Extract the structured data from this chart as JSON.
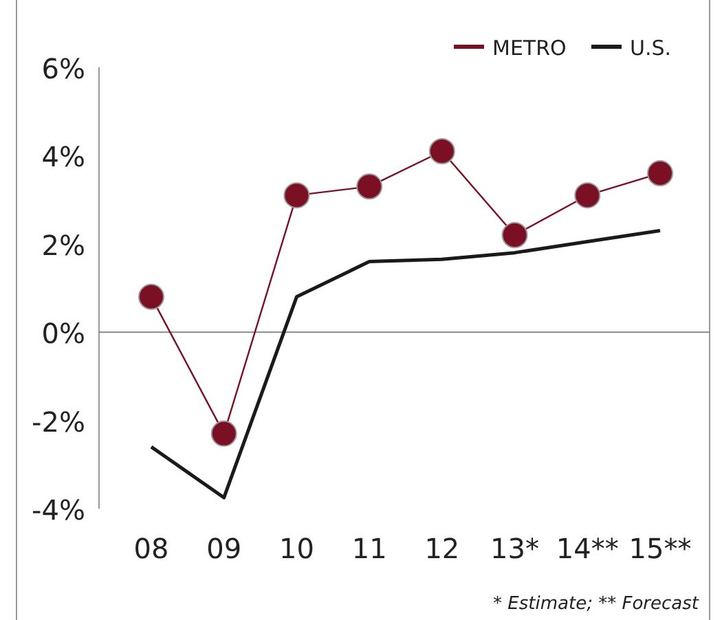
{
  "chart_data": {
    "type": "line",
    "categories": [
      "08",
      "09",
      "10",
      "11",
      "12",
      "13*",
      "14**",
      "15**"
    ],
    "series": [
      {
        "name": "METRO",
        "color": "#7b0f24",
        "marker": "circle",
        "values": [
          0.8,
          -2.3,
          3.1,
          3.3,
          4.1,
          2.2,
          3.1,
          3.6
        ]
      },
      {
        "name": "U.S.",
        "color": "#1a1a1a",
        "marker": "none",
        "values": [
          -2.6,
          -3.75,
          0.8,
          1.6,
          1.65,
          1.8,
          2.05,
          2.3
        ]
      }
    ],
    "ylim": [
      -4,
      6
    ],
    "yticks": [
      {
        "value": -4,
        "label": "-4%"
      },
      {
        "value": -2,
        "label": "-2%"
      },
      {
        "value": 0,
        "label": "0%"
      },
      {
        "value": 2,
        "label": "2%"
      },
      {
        "value": 4,
        "label": "4%"
      },
      {
        "value": 6,
        "label": "6%"
      }
    ],
    "ref_lines": [
      {
        "axis": "y",
        "value": 0,
        "color": "#888888"
      }
    ],
    "legend": "top right",
    "annotations": [
      "* Estimate; ** Forecast"
    ]
  }
}
